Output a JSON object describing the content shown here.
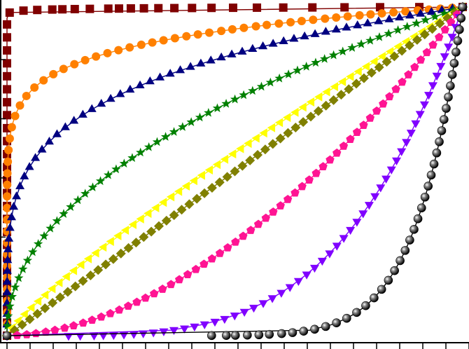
{
  "chart_data": {
    "type": "line",
    "title": "",
    "xlabel": "",
    "ylabel": "",
    "xlim": [
      0,
      1
    ],
    "ylim": [
      0,
      1
    ],
    "grid": false,
    "legend": "none",
    "x_ticks": [
      0,
      0.05,
      0.1,
      0.15,
      0.2,
      0.25,
      0.3,
      0.35,
      0.4,
      0.45,
      0.5,
      0.55,
      0.6,
      0.65,
      0.7,
      0.75,
      0.8,
      0.85,
      0.9,
      0.95,
      1.0
    ],
    "y_ticks": [
      0.12,
      0.3,
      0.48,
      0.66,
      0.84
    ],
    "series": [
      {
        "exponent": 0.1,
        "color": "#000000",
        "marker": "sphere"
      },
      {
        "exponent": 0.25,
        "color": "#8000ff",
        "marker": "triangle-down"
      },
      {
        "exponent": 0.55,
        "color": "#ff1493",
        "marker": "pentagon"
      },
      {
        "exponent": 1.0,
        "color": "#808000",
        "marker": "diamond"
      },
      {
        "exponent": 1.18,
        "color": "#ffff00",
        "marker": "triangle-left"
      },
      {
        "exponent": 2.1,
        "color": "#008000",
        "marker": "star"
      },
      {
        "exponent": 4.5,
        "color": "#000080",
        "marker": "triangle-up"
      },
      {
        "exponent": 10.0,
        "color": "#ff8000",
        "marker": "circle"
      },
      {
        "exponent": 300,
        "color": "#800000",
        "marker": "square"
      }
    ]
  }
}
